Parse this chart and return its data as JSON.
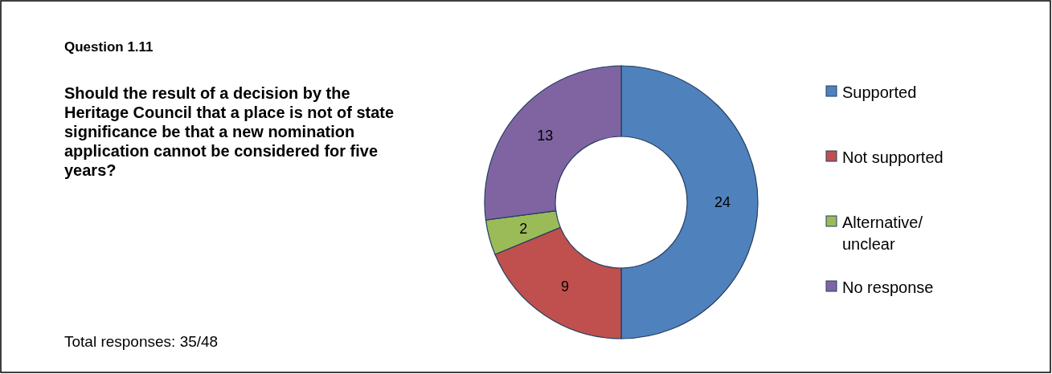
{
  "chart_data": {
    "type": "donut",
    "title": "Question 1.11",
    "subtitle": "Should the result of a decision by the Heritage Council that a place is not of state significance be that a new nomination application cannot be considered for five years?",
    "categories": [
      "Supported",
      "Not supported",
      "Alternative/ unclear",
      "No response"
    ],
    "values": [
      24,
      9,
      2,
      13
    ],
    "colors": [
      "#4f81bd",
      "#c0504d",
      "#9bbb59",
      "#8064a2"
    ],
    "data_labels": true,
    "legend": "right",
    "annotations": [
      "Total responses: 35/48"
    ]
  }
}
